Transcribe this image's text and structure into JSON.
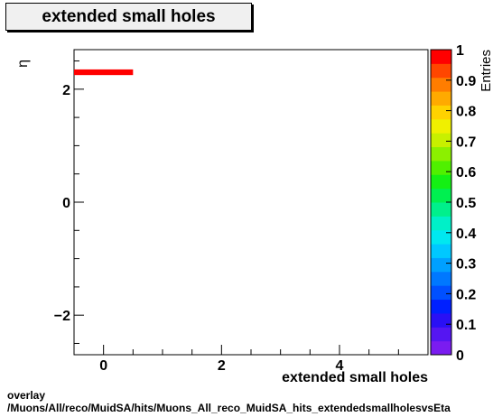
{
  "title": "extended small holes",
  "chart_data": {
    "type": "heatmap",
    "title": "extended small holes",
    "xlabel": "extended small holes",
    "ylabel": "η",
    "zlabel": "Entries",
    "xlim": [
      -0.5,
      5.5
    ],
    "ylim": [
      -2.7,
      2.7
    ],
    "zlim": [
      0,
      1
    ],
    "x_ticks": [
      "0",
      "2",
      "4"
    ],
    "y_ticks": [
      "−2",
      "0",
      "2"
    ],
    "z_ticks": [
      "0",
      "0.1",
      "0.2",
      "0.3",
      "0.4",
      "0.5",
      "0.6",
      "0.7",
      "0.8",
      "0.9",
      "1"
    ],
    "cells": [
      {
        "x0": -0.5,
        "x1": 0.5,
        "y0": 2.25,
        "y1": 2.35,
        "value": 1.0
      }
    ],
    "palette": [
      "#7a1cf0",
      "#5516f2",
      "#2a10f5",
      "#0020ff",
      "#0050ff",
      "#0078ff",
      "#00a0ff",
      "#00c8ff",
      "#00e8f0",
      "#00f0c8",
      "#00f08c",
      "#00f050",
      "#14f014",
      "#50f000",
      "#8cf000",
      "#c8f000",
      "#f0f000",
      "#ffd200",
      "#ffaa00",
      "#ff7d00",
      "#ff4600",
      "#ff0000"
    ]
  },
  "footer": {
    "line1": "overlay",
    "line2": "/Muons/All/reco/MuidSA/hits/Muons_All_reco_MuidSA_hits_extendedsmallholesvsEta"
  }
}
